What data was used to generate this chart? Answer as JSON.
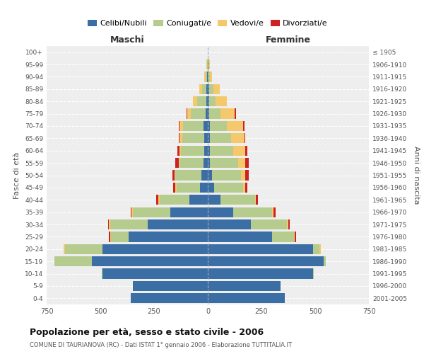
{
  "age_groups": [
    "0-4",
    "5-9",
    "10-14",
    "15-19",
    "20-24",
    "25-29",
    "30-34",
    "35-39",
    "40-44",
    "45-49",
    "50-54",
    "55-59",
    "60-64",
    "65-69",
    "70-74",
    "75-79",
    "80-84",
    "85-89",
    "90-94",
    "95-99",
    "100+"
  ],
  "birth_years": [
    "2001-2005",
    "1996-2000",
    "1991-1995",
    "1986-1990",
    "1981-1985",
    "1976-1980",
    "1971-1975",
    "1966-1970",
    "1961-1965",
    "1956-1960",
    "1951-1955",
    "1946-1950",
    "1941-1945",
    "1936-1940",
    "1931-1935",
    "1926-1930",
    "1921-1925",
    "1916-1920",
    "1911-1915",
    "1906-1910",
    "≤ 1905"
  ],
  "male": {
    "celibi": [
      360,
      350,
      490,
      540,
      490,
      370,
      280,
      175,
      85,
      35,
      30,
      20,
      15,
      15,
      20,
      10,
      5,
      5,
      2,
      1,
      0
    ],
    "coniugati": [
      0,
      0,
      5,
      175,
      175,
      80,
      175,
      175,
      140,
      110,
      120,
      110,
      110,
      105,
      95,
      70,
      45,
      20,
      8,
      2,
      0
    ],
    "vedovi": [
      0,
      0,
      0,
      0,
      5,
      5,
      5,
      5,
      5,
      5,
      5,
      5,
      5,
      10,
      15,
      15,
      20,
      15,
      5,
      2,
      0
    ],
    "divorziati": [
      0,
      0,
      0,
      0,
      0,
      5,
      5,
      5,
      10,
      10,
      10,
      15,
      10,
      5,
      5,
      5,
      0,
      0,
      0,
      0,
      0
    ]
  },
  "female": {
    "nubili": [
      360,
      340,
      490,
      540,
      490,
      300,
      200,
      120,
      60,
      30,
      20,
      10,
      10,
      10,
      10,
      5,
      5,
      5,
      2,
      2,
      0
    ],
    "coniugate": [
      0,
      0,
      5,
      10,
      30,
      100,
      170,
      180,
      160,
      135,
      135,
      130,
      110,
      100,
      80,
      55,
      30,
      20,
      8,
      3,
      0
    ],
    "vedove": [
      0,
      0,
      0,
      0,
      5,
      5,
      5,
      5,
      5,
      10,
      20,
      35,
      55,
      60,
      75,
      65,
      55,
      30,
      10,
      5,
      0
    ],
    "divorziate": [
      0,
      0,
      0,
      0,
      0,
      5,
      5,
      10,
      10,
      10,
      15,
      15,
      10,
      5,
      5,
      5,
      0,
      0,
      0,
      0,
      0
    ]
  },
  "colors": {
    "celibi": "#3a6ea5",
    "coniugati": "#b5cc8e",
    "vedovi": "#f5c96b",
    "divorziati": "#cc2222"
  },
  "legend_labels": [
    "Celibi/Nubili",
    "Coniugati/e",
    "Vedovi/e",
    "Divorziati/e"
  ],
  "title": "Popolazione per età, sesso e stato civile - 2006",
  "subtitle": "COMUNE DI TAURIANOVA (RC) - Dati ISTAT 1° gennaio 2006 - Elaborazione TUTTITALIA.IT",
  "xlabel_left": "Maschi",
  "xlabel_right": "Femmine",
  "ylabel_left": "Fasce di età",
  "ylabel_right": "Anni di nascita",
  "xlim": 750,
  "bg_color": "#ffffff",
  "plot_bg": "#eeeeee"
}
